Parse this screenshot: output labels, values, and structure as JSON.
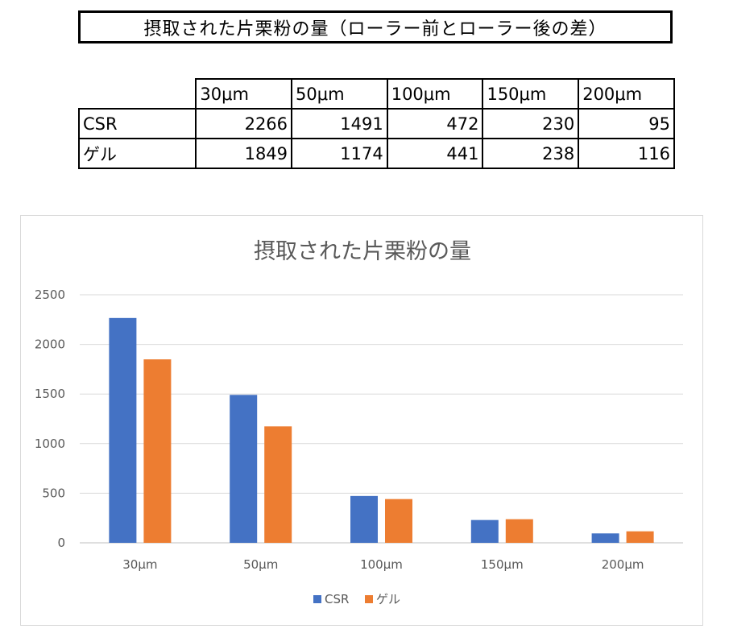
{
  "heading": "摂取された片栗粉の量（ローラー前とローラー後の差）",
  "table": {
    "headers": [
      "30μm",
      "50μm",
      "100μm",
      "150μm",
      "200μm"
    ],
    "rows": [
      {
        "label": "CSR",
        "values": [
          "2266",
          "1491",
          "472",
          "230",
          "95"
        ]
      },
      {
        "label": "ゲル",
        "values": [
          "1849",
          "1174",
          "441",
          "238",
          "116"
        ]
      }
    ]
  },
  "chart_data": {
    "type": "bar",
    "title": "摂取された片栗粉の量",
    "categories": [
      "30μm",
      "50μm",
      "100μm",
      "150μm",
      "200μm"
    ],
    "series": [
      {
        "name": "CSR",
        "values": [
          2266,
          1491,
          472,
          230,
          95
        ],
        "color": "#4472C4"
      },
      {
        "name": "ゲル",
        "values": [
          1849,
          1174,
          441,
          238,
          116
        ],
        "color": "#ED7D31"
      }
    ],
    "yticks": [
      "0",
      "500",
      "1000",
      "1500",
      "2000",
      "2500"
    ],
    "ylim": [
      0,
      2500
    ],
    "grid": true,
    "legend": "bottom"
  }
}
